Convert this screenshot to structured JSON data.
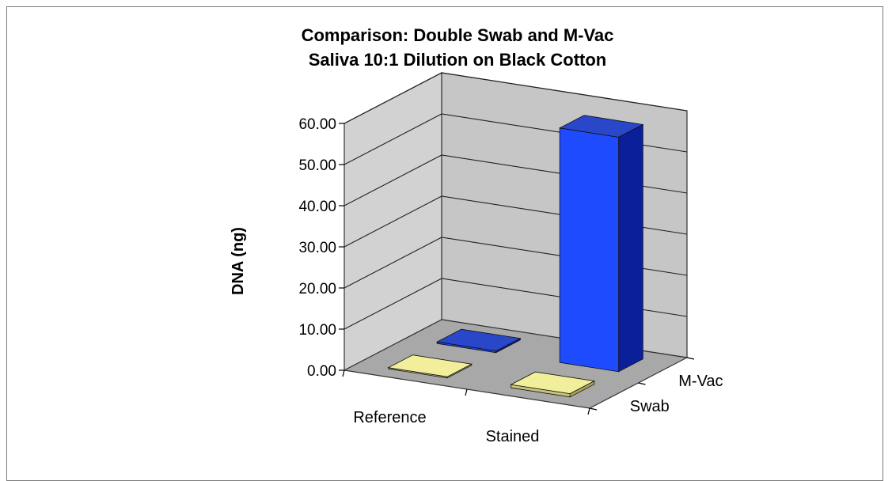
{
  "chart_data": {
    "type": "bar",
    "title": "Comparison: Double Swab and M-Vac",
    "subtitle": "Saliva 10:1 Dilution on Black Cotton",
    "xlabel": "",
    "ylabel": "DNA (ng)",
    "ylim": [
      0,
      60
    ],
    "ytick_labels": [
      "0.00",
      "10.00",
      "20.00",
      "30.00",
      "40.00",
      "50.00",
      "60.00"
    ],
    "categories": [
      "Reference",
      "Stained"
    ],
    "series": [
      {
        "name": "Swab",
        "values": [
          0.3,
          0.8
        ]
      },
      {
        "name": "M-Vac",
        "values": [
          0.4,
          57.0
        ]
      }
    ],
    "grid": true,
    "legend": "series axis labels on depth axis (right)",
    "style": "3d-column",
    "colors": {
      "Swab": {
        "top": "#f2ef9c",
        "front": "#c8c27a",
        "side": "#a9a35e"
      },
      "M-Vac": {
        "top": "#2a46c9",
        "front": "#1f4bff",
        "side": "#0b1f9a"
      },
      "wall": "#c6c6c6",
      "floor": "#a8a8a8",
      "grid": "#222222"
    }
  }
}
